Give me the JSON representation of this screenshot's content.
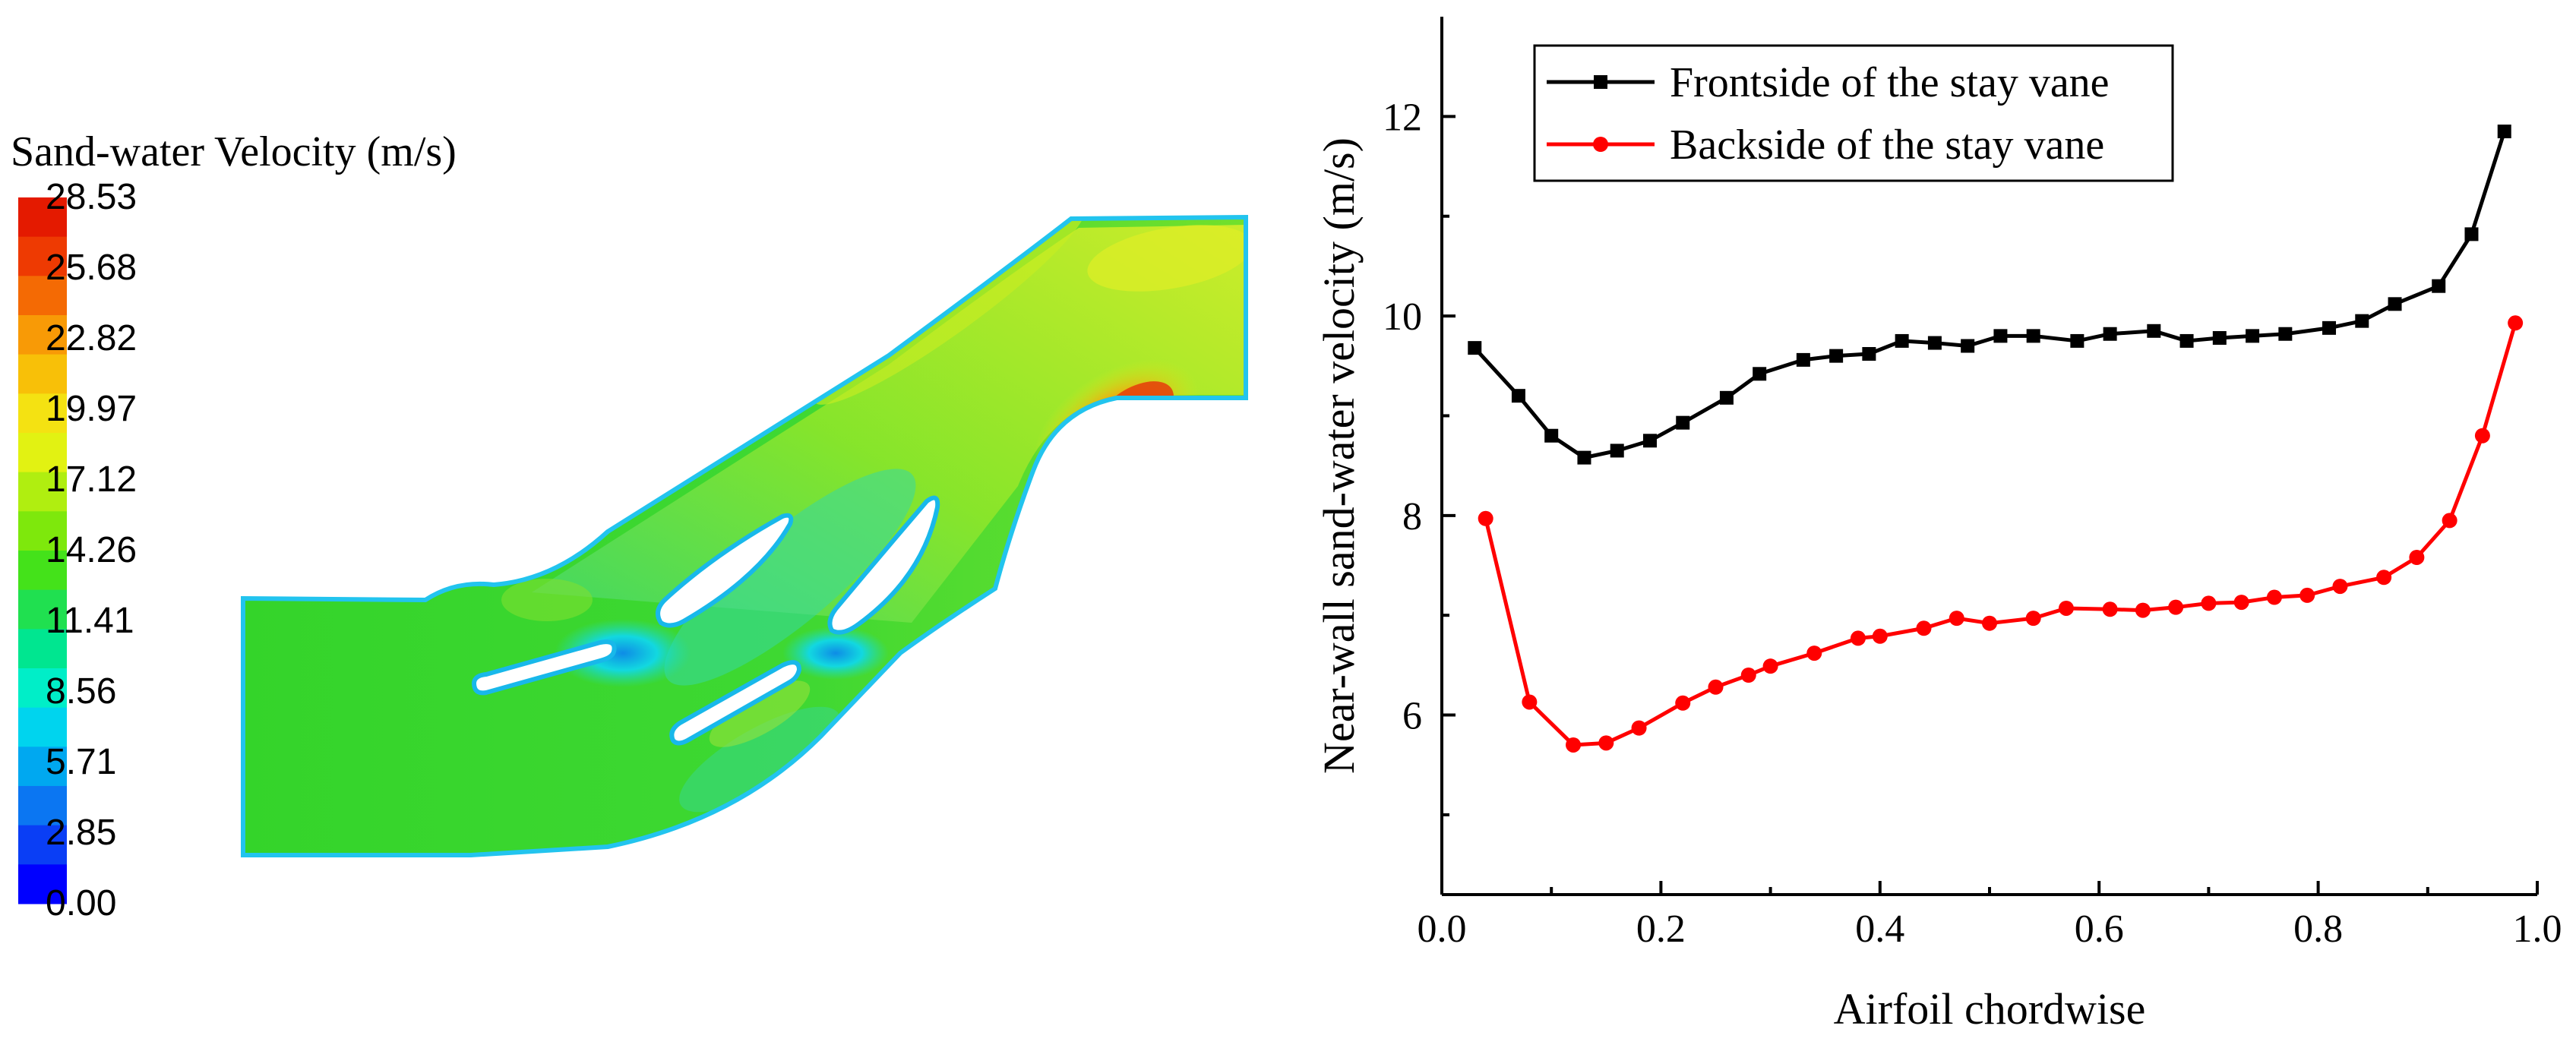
{
  "contour_plot": {
    "legend_title": "Sand-water Velocity (m/s)",
    "color_levels": [
      "28.53",
      "25.68",
      "22.82",
      "19.97",
      "17.12",
      "14.26",
      "11.41",
      "8.56",
      "5.71",
      "2.85",
      "0.00"
    ],
    "colors": [
      "#0000ff",
      "#0a3ef5",
      "#0b76f2",
      "#00a8f0",
      "#00d4ee",
      "#00eec8",
      "#00e690",
      "#20e050",
      "#44e21a",
      "#7ee80c",
      "#b0ee10",
      "#e2f212",
      "#f4e212",
      "#f8c008",
      "#f89a06",
      "#f46a04",
      "#ee3a02",
      "#e41a00"
    ]
  },
  "chart_data": {
    "type": "line",
    "xlabel": "Airfoil chordwise",
    "ylabel": "Near-wall sand-water velocity (m/s)",
    "xlim": [
      0.0,
      1.0
    ],
    "ylim": [
      4.2,
      13.0
    ],
    "x_ticks": [
      "0.0",
      "0.2",
      "0.4",
      "0.6",
      "0.8",
      "1.0"
    ],
    "y_ticks": [
      "6",
      "8",
      "10",
      "12"
    ],
    "x_tick_values": [
      0.0,
      0.2,
      0.4,
      0.6,
      0.8,
      1.0
    ],
    "y_tick_values": [
      6,
      8,
      10,
      12
    ],
    "legend_position": "top-left",
    "series": [
      {
        "name": "Frontside of the stay vane",
        "color": "#000000",
        "marker": "square",
        "x": [
          0.03,
          0.07,
          0.1,
          0.13,
          0.16,
          0.19,
          0.22,
          0.26,
          0.29,
          0.33,
          0.36,
          0.39,
          0.42,
          0.45,
          0.48,
          0.51,
          0.54,
          0.58,
          0.61,
          0.65,
          0.68,
          0.71,
          0.74,
          0.77,
          0.81,
          0.84,
          0.87,
          0.91,
          0.94,
          0.97
        ],
        "y": [
          9.68,
          9.2,
          8.8,
          8.58,
          8.65,
          8.75,
          8.93,
          9.18,
          9.42,
          9.56,
          9.6,
          9.62,
          9.75,
          9.73,
          9.7,
          9.8,
          9.8,
          9.75,
          9.82,
          9.85,
          9.75,
          9.78,
          9.8,
          9.82,
          9.88,
          9.95,
          10.12,
          10.3,
          10.82,
          11.85
        ]
      },
      {
        "name": "Backside of the stay vane",
        "color": "#ff0000",
        "marker": "circle",
        "x": [
          0.04,
          0.08,
          0.12,
          0.15,
          0.18,
          0.22,
          0.25,
          0.28,
          0.3,
          0.34,
          0.38,
          0.4,
          0.44,
          0.47,
          0.5,
          0.54,
          0.57,
          0.61,
          0.64,
          0.67,
          0.7,
          0.73,
          0.76,
          0.79,
          0.82,
          0.86,
          0.89,
          0.92,
          0.95,
          0.98
        ],
        "y": [
          7.97,
          6.13,
          5.7,
          5.72,
          5.87,
          6.12,
          6.28,
          6.4,
          6.49,
          6.62,
          6.77,
          6.79,
          6.87,
          6.97,
          6.92,
          6.97,
          7.07,
          7.06,
          7.05,
          7.08,
          7.12,
          7.13,
          7.18,
          7.2,
          7.29,
          7.38,
          7.58,
          7.95,
          8.8,
          9.93
        ]
      }
    ]
  }
}
